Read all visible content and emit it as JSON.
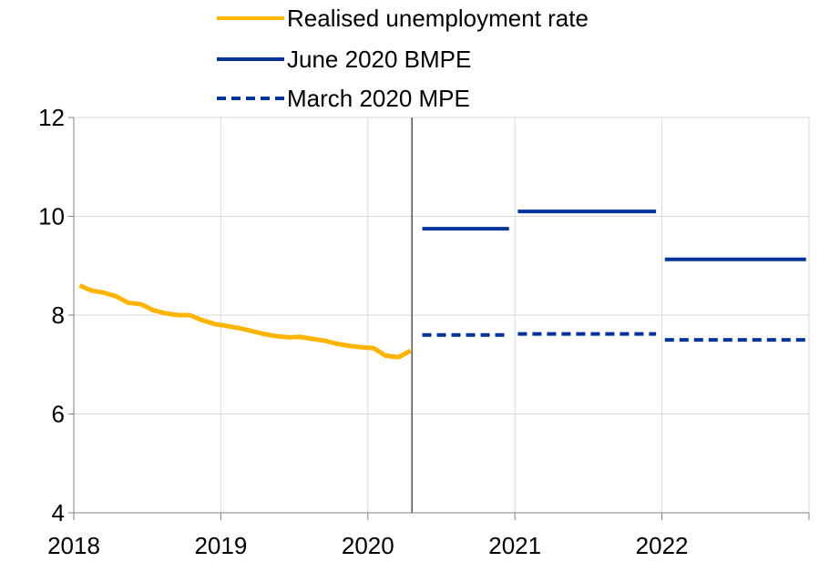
{
  "chart_data": {
    "type": "line",
    "title": "",
    "xlabel": "",
    "ylabel": "",
    "ylim": [
      4,
      12
    ],
    "xlim": [
      2018,
      2023
    ],
    "yticks": [
      "4",
      "6",
      "8",
      "10",
      "12"
    ],
    "xticks": [
      "2018",
      "2019",
      "2020",
      "2021",
      "2022"
    ],
    "grid": true,
    "legend_position": "top",
    "vline_x": 2020.3,
    "series": [
      {
        "name": "Realised unemployment rate",
        "color": "#FFB400",
        "style": "solid",
        "x": [
          2018.04,
          2018.12,
          2018.21,
          2018.29,
          2018.37,
          2018.46,
          2018.54,
          2018.62,
          2018.71,
          2018.79,
          2018.87,
          2018.96,
          2019.04,
          2019.12,
          2019.21,
          2019.29,
          2019.37,
          2019.46,
          2019.54,
          2019.62,
          2019.71,
          2019.79,
          2019.87,
          2019.96,
          2020.04,
          2020.12,
          2020.21,
          2020.29
        ],
        "values": [
          8.6,
          8.5,
          8.45,
          8.38,
          8.25,
          8.22,
          8.1,
          8.04,
          8.0,
          8.0,
          7.9,
          7.82,
          7.78,
          7.74,
          7.68,
          7.62,
          7.58,
          7.55,
          7.56,
          7.52,
          7.48,
          7.42,
          7.38,
          7.35,
          7.33,
          7.18,
          7.15,
          7.28
        ]
      },
      {
        "name": "June 2020 BMPE",
        "color": "#003299",
        "style": "solid",
        "segments": [
          {
            "x0": 2020.37,
            "x1": 2020.96,
            "value": 9.75
          },
          {
            "x0": 2021.02,
            "x1": 2021.96,
            "value": 10.1
          },
          {
            "x0": 2022.02,
            "x1": 2022.98,
            "value": 9.13
          }
        ]
      },
      {
        "name": "March 2020 MPE",
        "color": "#003299",
        "style": "dashed",
        "segments": [
          {
            "x0": 2020.37,
            "x1": 2020.96,
            "value": 7.6
          },
          {
            "x0": 2021.02,
            "x1": 2021.96,
            "value": 7.62
          },
          {
            "x0": 2022.02,
            "x1": 2022.98,
            "value": 7.5
          }
        ]
      }
    ]
  }
}
